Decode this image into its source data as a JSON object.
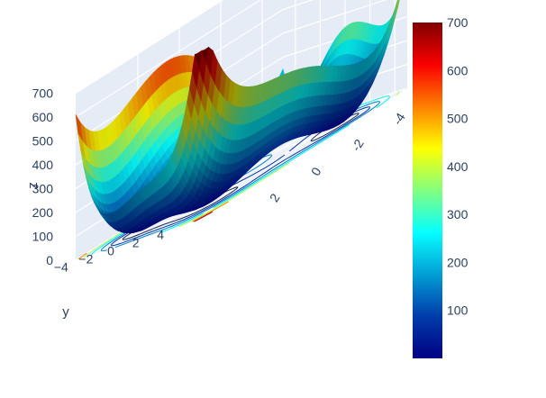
{
  "chart_data": {
    "type": "surface3d",
    "title": "",
    "surface_function": "himmelblau",
    "x_range": [
      -5,
      5
    ],
    "y_range": [
      -5,
      5
    ],
    "z_range": [
      0,
      700
    ],
    "axes": {
      "x": {
        "title": "",
        "ticks": [
          -4,
          -2,
          0,
          2
        ],
        "tick_labels": [
          "-4",
          "-2",
          "0",
          "2"
        ]
      },
      "y": {
        "title": "y",
        "ticks": [
          -4,
          -2,
          0,
          2,
          4
        ],
        "tick_labels": [
          "−4",
          "−2",
          "0",
          "2",
          "4"
        ]
      },
      "z": {
        "title": "z",
        "ticks": [
          0,
          100,
          200,
          300,
          400,
          500,
          600,
          700
        ],
        "tick_labels": [
          "0",
          "100",
          "200",
          "300",
          "400",
          "500",
          "600",
          "700"
        ]
      }
    },
    "contours_projected_on_floor": true,
    "grid": true,
    "background": "#e5ecf6",
    "colorscale": "jet",
    "colorbar": {
      "min": 0,
      "max": 700,
      "ticks": [
        100,
        200,
        300,
        400,
        500,
        600,
        700
      ],
      "tick_labels": [
        "100",
        "200",
        "300",
        "400",
        "500",
        "600",
        "700"
      ]
    }
  },
  "colors": {
    "tick_text": "#2a3f5f",
    "scene_background": "#e5ecf6",
    "grid": "#ffffff",
    "colorscale_stops": [
      "#000083",
      "#003caa",
      "#05ffff",
      "#ffff00",
      "#fa0000",
      "#800000"
    ]
  }
}
